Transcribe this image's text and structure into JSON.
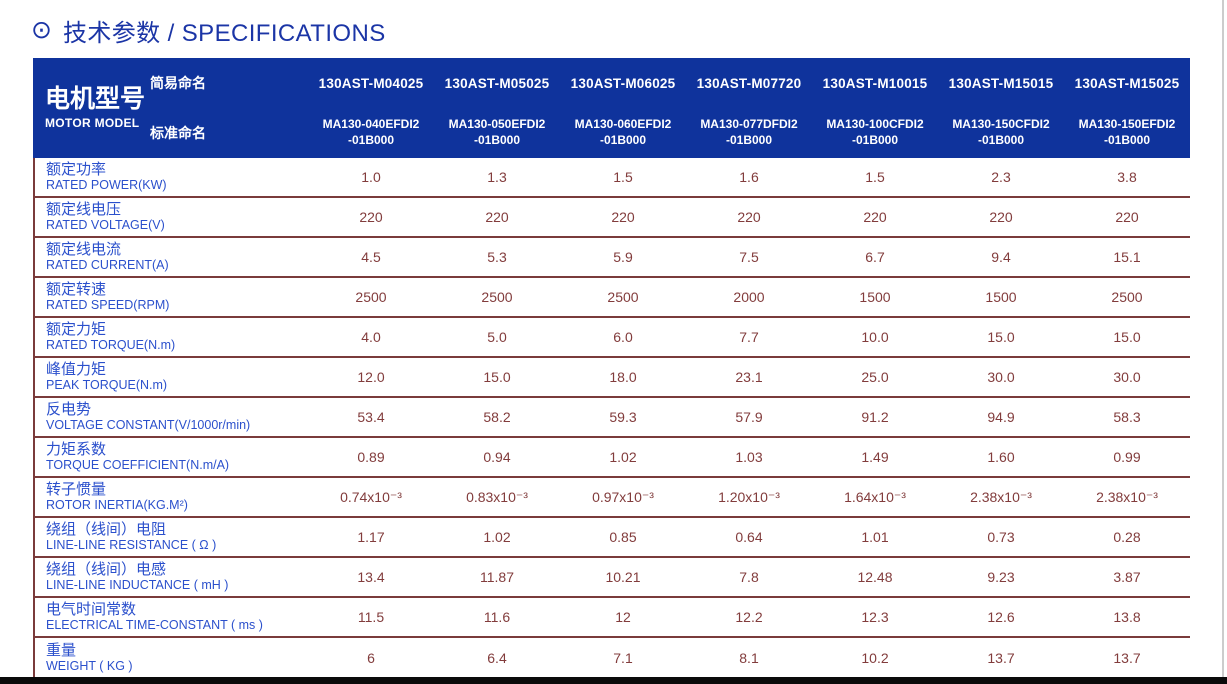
{
  "title": {
    "icon": "circle-dot",
    "text": "技术参数 / SPECIFICATIONS"
  },
  "colors": {
    "header_blue": "#0f339c",
    "title_blue": "#1b35a6",
    "label_blue": "#2b50cc",
    "value_maroon": "#823c3c",
    "divider_maroon": "#7a3b3b",
    "bottom_bar": "#0a0a0a"
  },
  "header": {
    "motor_model_cn": "电机型号",
    "motor_model_en": "MOTOR MODEL",
    "simple_name_label": "简易命名",
    "standard_name_label": "标准命名"
  },
  "columns": [
    {
      "simple": "130AST-M04025",
      "standard_line1": "MA130-040EFDI2",
      "standard_line2": "-01B000"
    },
    {
      "simple": "130AST-M05025",
      "standard_line1": "MA130-050EFDI2",
      "standard_line2": "-01B000"
    },
    {
      "simple": "130AST-M06025",
      "standard_line1": "MA130-060EFDI2",
      "standard_line2": "-01B000"
    },
    {
      "simple": "130AST-M07720",
      "standard_line1": "MA130-077DFDI2",
      "standard_line2": "-01B000"
    },
    {
      "simple": "130AST-M10015",
      "standard_line1": "MA130-100CFDI2",
      "standard_line2": "-01B000"
    },
    {
      "simple": "130AST-M15015",
      "standard_line1": "MA130-150CFDI2",
      "standard_line2": "-01B000"
    },
    {
      "simple": "130AST-M15025",
      "standard_line1": "MA130-150EFDI2",
      "standard_line2": "-01B000"
    }
  ],
  "rows": [
    {
      "cn": "额定功率",
      "en": "RATED POWER(KW)",
      "values": [
        "1.0",
        "1.3",
        "1.5",
        "1.6",
        "1.5",
        "2.3",
        "3.8"
      ]
    },
    {
      "cn": "额定线电压",
      "en": "RATED VOLTAGE(V)",
      "values": [
        "220",
        "220",
        "220",
        "220",
        "220",
        "220",
        "220"
      ]
    },
    {
      "cn": "额定线电流",
      "en": "RATED CURRENT(A)",
      "values": [
        "4.5",
        "5.3",
        "5.9",
        "7.5",
        "6.7",
        "9.4",
        "15.1"
      ]
    },
    {
      "cn": "额定转速",
      "en": "RATED SPEED(RPM)",
      "values": [
        "2500",
        "2500",
        "2500",
        "2000",
        "1500",
        "1500",
        "2500"
      ]
    },
    {
      "cn": "额定力矩",
      "en": "RATED TORQUE(N.m)",
      "values": [
        "4.0",
        "5.0",
        "6.0",
        "7.7",
        "10.0",
        "15.0",
        "15.0"
      ]
    },
    {
      "cn": "峰值力矩",
      "en": "PEAK TORQUE(N.m)",
      "values": [
        "12.0",
        "15.0",
        "18.0",
        "23.1",
        "25.0",
        "30.0",
        "30.0"
      ]
    },
    {
      "cn": "反电势",
      "en": "VOLTAGE CONSTANT(V/1000r/min)",
      "values": [
        "53.4",
        "58.2",
        "59.3",
        "57.9",
        "91.2",
        "94.9",
        "58.3"
      ]
    },
    {
      "cn": "力矩系数",
      "en": "TORQUE COEFFICIENT(N.m/A)",
      "values": [
        "0.89",
        "0.94",
        "1.02",
        "1.03",
        "1.49",
        "1.60",
        "0.99"
      ]
    },
    {
      "cn": "转子惯量",
      "en": "ROTOR INERTIA(KG.M²)",
      "values": [
        "0.74x10⁻³",
        "0.83x10⁻³",
        "0.97x10⁻³",
        "1.20x10⁻³",
        "1.64x10⁻³",
        "2.38x10⁻³",
        "2.38x10⁻³"
      ]
    },
    {
      "cn": "绕组（线间）电阻",
      "en": "LINE-LINE RESISTANCE ( Ω )",
      "values": [
        "1.17",
        "1.02",
        "0.85",
        "0.64",
        "1.01",
        "0.73",
        "0.28"
      ]
    },
    {
      "cn": "绕组（线间）电感",
      "en": "LINE-LINE INDUCTANCE ( mH )",
      "values": [
        "13.4",
        "11.87",
        "10.21",
        "7.8",
        "12.48",
        "9.23",
        "3.87"
      ]
    },
    {
      "cn": "电气时间常数",
      "en": "ELECTRICAL TIME-CONSTANT ( ms )",
      "values": [
        "11.5",
        "11.6",
        "12",
        "12.2",
        "12.3",
        "12.6",
        "13.8"
      ]
    },
    {
      "cn": "重量",
      "en": "WEIGHT ( KG )",
      "values": [
        "6",
        "6.4",
        "7.1",
        "8.1",
        "10.2",
        "13.7",
        "13.7"
      ]
    }
  ]
}
